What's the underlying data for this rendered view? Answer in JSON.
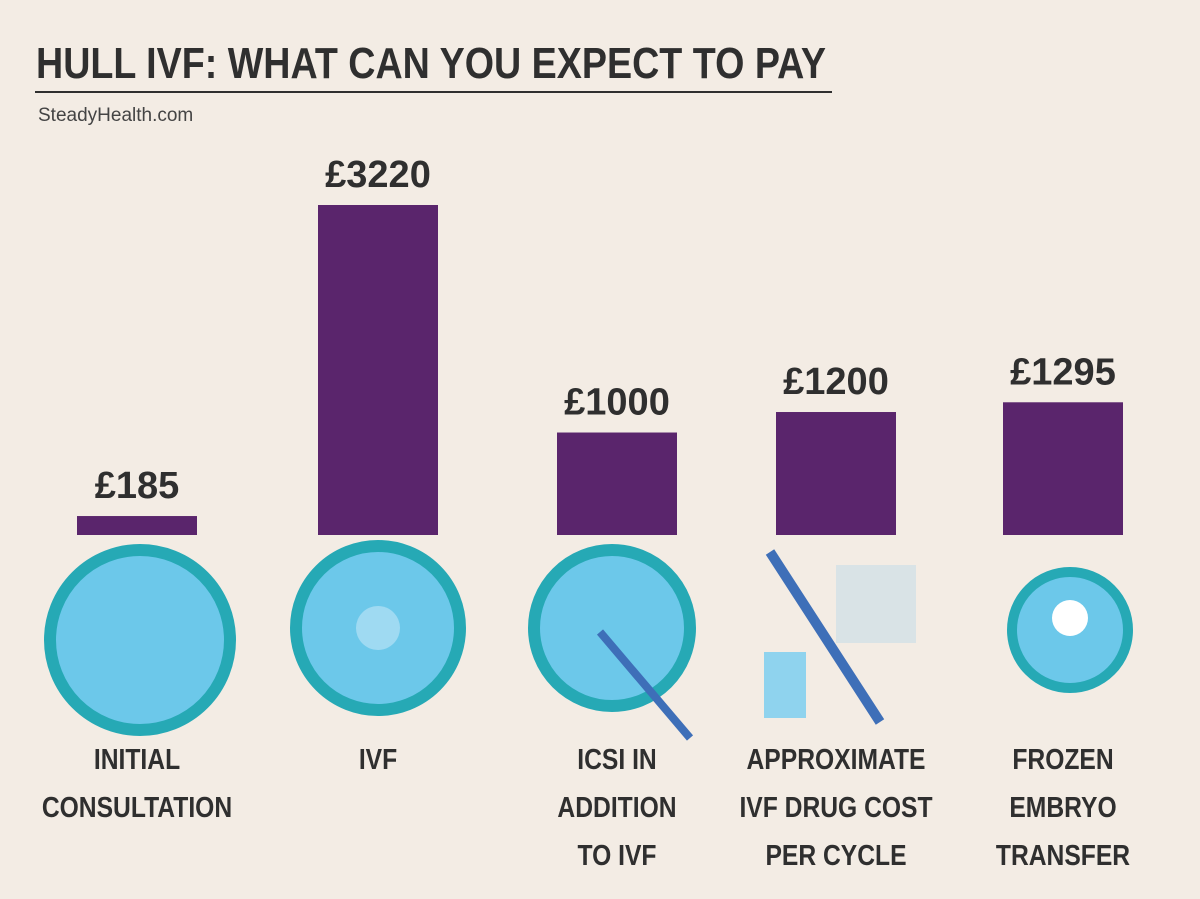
{
  "chart_data": {
    "type": "bar",
    "title": "HULL IVF: WHAT CAN YOU EXPECT TO PAY",
    "source": "SteadyHealth.com",
    "categories": [
      "INITIAL\nCONSULTATION",
      "IVF",
      "ICSI IN\nADDITION\nTO IVF",
      "APPROXIMATE\nIVF DRUG COST\nPER CYCLE",
      "FROZEN\nEMBRYO\nTRANSFER"
    ],
    "values": [
      185,
      3220,
      1000,
      1200,
      1295
    ],
    "value_labels": [
      "£185",
      "£3220",
      "£1000",
      "£1200",
      "£1295"
    ],
    "color": "#5a256c"
  }
}
